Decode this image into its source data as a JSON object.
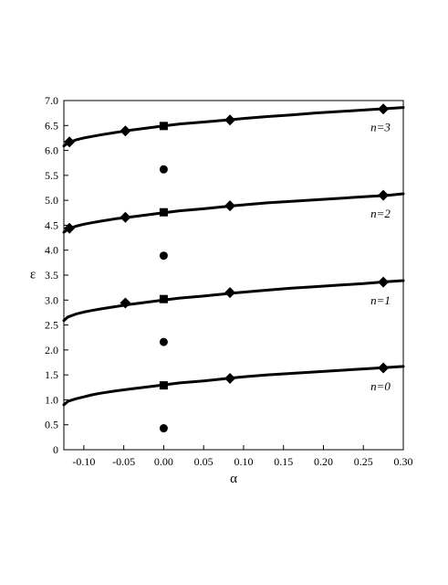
{
  "chart_data": {
    "type": "line",
    "title": "",
    "xlabel": "α",
    "ylabel": "ε",
    "xlim": [
      -0.125,
      0.3
    ],
    "ylim": [
      0,
      7.0
    ],
    "x_ticks": [
      "-0.10",
      "-0.05",
      "0.00",
      "0.05",
      "0.10",
      "0.15",
      "0.20",
      "0.25",
      "0.30"
    ],
    "x_tick_values": [
      -0.1,
      -0.05,
      0.0,
      0.05,
      0.1,
      0.15,
      0.2,
      0.25,
      0.3
    ],
    "y_ticks": [
      "0",
      "0.5",
      "1.0",
      "1.5",
      "2.0",
      "2.5",
      "3.0",
      "3.5",
      "4.0",
      "4.5",
      "5.0",
      "5.5",
      "6.0",
      "6.5",
      "7.0"
    ],
    "y_tick_values": [
      0,
      0.5,
      1.0,
      1.5,
      2.0,
      2.5,
      3.0,
      3.5,
      4.0,
      4.5,
      5.0,
      5.5,
      6.0,
      6.5,
      7.0
    ],
    "grid": false,
    "series": [
      {
        "label": "n=0",
        "curve": [
          [
            -0.125,
            0.9
          ],
          [
            -0.12,
            0.97
          ],
          [
            -0.11,
            1.02
          ],
          [
            -0.1,
            1.06
          ],
          [
            -0.09,
            1.1
          ],
          [
            -0.08,
            1.13
          ],
          [
            -0.06,
            1.18
          ],
          [
            -0.04,
            1.22
          ],
          [
            -0.02,
            1.26
          ],
          [
            0.0,
            1.3
          ],
          [
            0.02,
            1.34
          ],
          [
            0.05,
            1.38
          ],
          [
            0.08,
            1.43
          ],
          [
            0.1,
            1.46
          ],
          [
            0.13,
            1.5
          ],
          [
            0.16,
            1.53
          ],
          [
            0.19,
            1.56
          ],
          [
            0.22,
            1.59
          ],
          [
            0.25,
            1.62
          ],
          [
            0.28,
            1.65
          ],
          [
            0.3,
            1.67
          ]
        ],
        "diamonds": [
          [
            0.083,
            1.43
          ],
          [
            0.275,
            1.64
          ]
        ],
        "square": [
          0.0,
          1.29
        ],
        "circle": [
          0.0,
          0.43
        ]
      },
      {
        "label": "n=1",
        "curve": [
          [
            -0.125,
            2.59
          ],
          [
            -0.12,
            2.66
          ],
          [
            -0.11,
            2.72
          ],
          [
            -0.1,
            2.76
          ],
          [
            -0.09,
            2.79
          ],
          [
            -0.08,
            2.82
          ],
          [
            -0.06,
            2.87
          ],
          [
            -0.04,
            2.92
          ],
          [
            -0.02,
            2.96
          ],
          [
            0.0,
            3.0
          ],
          [
            0.02,
            3.04
          ],
          [
            0.05,
            3.08
          ],
          [
            0.08,
            3.13
          ],
          [
            0.1,
            3.16
          ],
          [
            0.13,
            3.2
          ],
          [
            0.16,
            3.24
          ],
          [
            0.19,
            3.27
          ],
          [
            0.22,
            3.3
          ],
          [
            0.25,
            3.33
          ],
          [
            0.28,
            3.37
          ],
          [
            0.3,
            3.39
          ]
        ],
        "diamonds": [
          [
            -0.048,
            2.94
          ],
          [
            0.083,
            3.15
          ],
          [
            0.275,
            3.36
          ]
        ],
        "square": [
          0.0,
          3.02
        ],
        "circle": [
          0.0,
          2.16
        ]
      },
      {
        "label": "n=2",
        "curve": [
          [
            -0.125,
            4.36
          ],
          [
            -0.12,
            4.42
          ],
          [
            -0.11,
            4.48
          ],
          [
            -0.1,
            4.52
          ],
          [
            -0.09,
            4.55
          ],
          [
            -0.08,
            4.58
          ],
          [
            -0.06,
            4.63
          ],
          [
            -0.04,
            4.67
          ],
          [
            -0.02,
            4.71
          ],
          [
            0.0,
            4.75
          ],
          [
            0.02,
            4.79
          ],
          [
            0.05,
            4.83
          ],
          [
            0.08,
            4.88
          ],
          [
            0.1,
            4.91
          ],
          [
            0.13,
            4.95
          ],
          [
            0.16,
            4.98
          ],
          [
            0.19,
            5.01
          ],
          [
            0.22,
            5.04
          ],
          [
            0.25,
            5.07
          ],
          [
            0.28,
            5.1
          ],
          [
            0.3,
            5.13
          ]
        ],
        "diamonds": [
          [
            -0.118,
            4.44
          ],
          [
            -0.048,
            4.66
          ],
          [
            0.083,
            4.89
          ],
          [
            0.275,
            5.1
          ]
        ],
        "square": [
          0.0,
          4.76
        ],
        "circle": [
          0.0,
          3.89
        ]
      },
      {
        "label": "n=3",
        "curve": [
          [
            -0.125,
            6.09
          ],
          [
            -0.12,
            6.15
          ],
          [
            -0.11,
            6.21
          ],
          [
            -0.1,
            6.25
          ],
          [
            -0.09,
            6.28
          ],
          [
            -0.08,
            6.31
          ],
          [
            -0.06,
            6.36
          ],
          [
            -0.04,
            6.41
          ],
          [
            -0.02,
            6.45
          ],
          [
            0.0,
            6.49
          ],
          [
            0.02,
            6.53
          ],
          [
            0.05,
            6.57
          ],
          [
            0.08,
            6.61
          ],
          [
            0.1,
            6.64
          ],
          [
            0.13,
            6.68
          ],
          [
            0.16,
            6.71
          ],
          [
            0.19,
            6.75
          ],
          [
            0.22,
            6.78
          ],
          [
            0.25,
            6.81
          ],
          [
            0.28,
            6.84
          ],
          [
            0.3,
            6.86
          ]
        ],
        "diamonds": [
          [
            -0.118,
            6.17
          ],
          [
            -0.048,
            6.39
          ],
          [
            0.083,
            6.61
          ],
          [
            0.275,
            6.83
          ]
        ],
        "square": [
          0.0,
          6.49
        ],
        "circle": [
          0.0,
          5.62
        ]
      }
    ],
    "curve_label_x": 0.22
  }
}
